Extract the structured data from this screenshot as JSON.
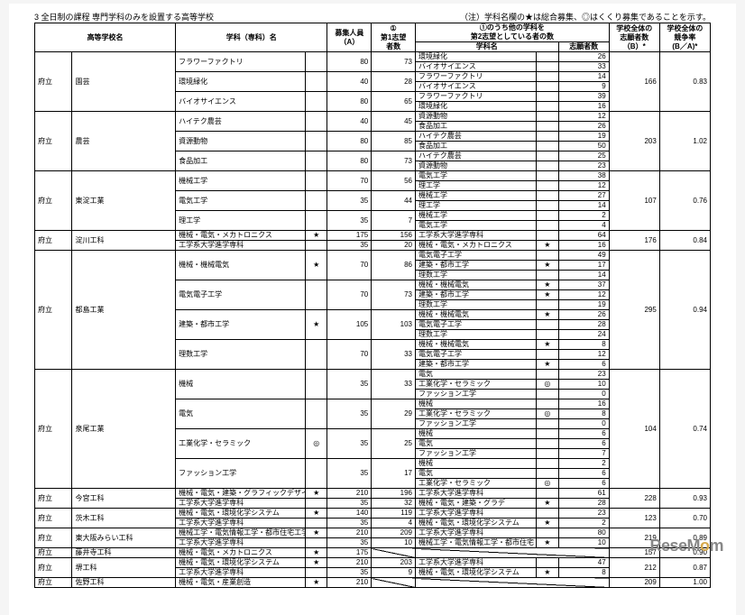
{
  "title_left": "3 全日制の課程 専門学科のみを設置する高等学校",
  "title_right": "（注）学科名欄の★は総合募集、◎はくくり募集であることを示す。",
  "head": {
    "school": "高等学校名",
    "dept": "学科（専科）名",
    "capacity": "募集人員\n（A）",
    "first": "①\n第1志望\n者数",
    "second_top": "①のうち他の学科を\n第2志望としている者の数",
    "second_dept": "学科名",
    "second_count": "志願者数",
    "total": "学校全体の\n志願者数\n（B）*",
    "ratio": "学校全体の\n競争率\n（B／A）*"
  },
  "groups": [
    {
      "prefix": "府立",
      "school": "園芸",
      "total": 166,
      "ratio": "0.83",
      "depts": [
        {
          "name": "フラワーファクトリ",
          "cap": 80,
          "first": 73,
          "sec": [
            [
              "環境緑化",
              26
            ],
            [
              "バイオサイエンス",
              33
            ]
          ]
        },
        {
          "name": "環境緑化",
          "cap": 40,
          "first": 28,
          "sec": [
            [
              "フラワーファクトリ",
              14
            ],
            [
              "バイオサイエンス",
              9
            ]
          ]
        },
        {
          "name": "バイオサイエンス",
          "cap": 80,
          "first": 65,
          "sec": [
            [
              "フラワーファクトリ",
              39
            ],
            [
              "環境緑化",
              16
            ]
          ]
        }
      ]
    },
    {
      "prefix": "府立",
      "school": "農芸",
      "total": 203,
      "ratio": "1.02",
      "depts": [
        {
          "name": "ハイテク農芸",
          "cap": 40,
          "first": 45,
          "sec": [
            [
              "資源動物",
              12
            ],
            [
              "食品加工",
              26
            ]
          ]
        },
        {
          "name": "資源動物",
          "cap": 80,
          "first": 85,
          "sec": [
            [
              "ハイテク農芸",
              19
            ],
            [
              "食品加工",
              50
            ]
          ]
        },
        {
          "name": "食品加工",
          "cap": 80,
          "first": 73,
          "sec": [
            [
              "ハイテク農芸",
              25
            ],
            [
              "資源動物",
              23
            ]
          ]
        }
      ]
    },
    {
      "prefix": "府立",
      "school": "東淀工業",
      "total": 107,
      "ratio": "0.76",
      "depts": [
        {
          "name": "機械工学",
          "cap": 70,
          "first": 56,
          "sec": [
            [
              "電気工学",
              38
            ],
            [
              "理工学",
              12
            ]
          ]
        },
        {
          "name": "電気工学",
          "cap": 35,
          "first": 44,
          "sec": [
            [
              "機械工学",
              27
            ],
            [
              "理工学",
              14
            ]
          ]
        },
        {
          "name": "理工学",
          "cap": 35,
          "first": 7,
          "sec": [
            [
              "機械工学",
              2
            ],
            [
              "電気工学",
              4
            ]
          ]
        }
      ]
    },
    {
      "prefix": "府立",
      "school": "淀川工科",
      "total": 176,
      "ratio": "0.84",
      "depts": [
        {
          "name": "機械・電気・メカトロニクス",
          "mark": "★",
          "cap": 175,
          "first": 156,
          "sec": [
            [
              "工学系大学進学専科",
              64
            ]
          ]
        },
        {
          "name": "工学系大学進学専科",
          "cap": 35,
          "first": 20,
          "sec": [
            [
              "機械・電気・メカトロニクス",
              "★",
              16
            ]
          ]
        }
      ]
    },
    {
      "prefix": "府立",
      "school": "都島工業",
      "total": 295,
      "ratio": "0.94",
      "depts": [
        {
          "name": "機械・機械電気",
          "mark": "★",
          "cap": 70,
          "first": 86,
          "sec": [
            [
              "電気電子工学",
              "",
              49
            ],
            [
              "建築・都市工学",
              "★",
              17
            ],
            [
              "理数工学",
              "",
              14
            ]
          ]
        },
        {
          "name": "電気電子工学",
          "cap": 70,
          "first": 73,
          "sec": [
            [
              "機械・機械電気",
              "★",
              37
            ],
            [
              "建築・都市工学",
              "★",
              12
            ],
            [
              "理数工学",
              "",
              19
            ]
          ]
        },
        {
          "name": "建築・都市工学",
          "mark": "★",
          "cap": 105,
          "first": 103,
          "sec": [
            [
              "機械・機械電気",
              "★",
              26
            ],
            [
              "電気電子工学",
              "",
              28
            ],
            [
              "理数工学",
              "",
              24
            ]
          ]
        },
        {
          "name": "理数工学",
          "cap": 70,
          "first": 33,
          "sec": [
            [
              "機械・機械電気",
              "★",
              8
            ],
            [
              "電気電子工学",
              "",
              12
            ],
            [
              "建築・都市工学",
              "★",
              6
            ]
          ]
        }
      ]
    },
    {
      "prefix": "府立",
      "school": "泉尾工業",
      "total": 104,
      "ratio": "0.74",
      "depts": [
        {
          "name": "機械",
          "cap": 35,
          "first": 33,
          "sec": [
            [
              "電気",
              "",
              23
            ],
            [
              "工業化学・セラミック",
              "◎",
              10
            ],
            [
              "ファッション工学",
              "",
              0
            ]
          ]
        },
        {
          "name": "電気",
          "cap": 35,
          "first": 29,
          "sec": [
            [
              "機械",
              "",
              16
            ],
            [
              "工業化学・セラミック",
              "◎",
              8
            ],
            [
              "ファッション工学",
              "",
              0
            ]
          ]
        },
        {
          "name": "工業化学・セラミック",
          "mark": "◎",
          "cap": 35,
          "first": 25,
          "sec": [
            [
              "機械",
              "",
              6
            ],
            [
              "電気",
              "",
              6
            ],
            [
              "ファッション工学",
              "",
              7
            ]
          ]
        },
        {
          "name": "ファッション工学",
          "cap": 35,
          "first": 17,
          "sec": [
            [
              "機械",
              "",
              2
            ],
            [
              "電気",
              "",
              6
            ],
            [
              "工業化学・セラミック",
              "◎",
              6
            ]
          ]
        }
      ]
    },
    {
      "prefix": "府立",
      "school": "今宮工科",
      "total": 228,
      "ratio": "0.93",
      "depts": [
        {
          "name": "機械・電気・建築・グラフィックデザイン",
          "mark": "★",
          "cap": 210,
          "first": 196,
          "sec": [
            [
              "工学系大学進学専科",
              61
            ]
          ]
        },
        {
          "name": "工学系大学進学専科",
          "cap": 35,
          "first": 32,
          "sec": [
            [
              "機械・電気・建築・グラデ",
              "★",
              28
            ]
          ]
        }
      ]
    },
    {
      "prefix": "府立",
      "school": "茨木工科",
      "total": 123,
      "ratio": "0.70",
      "depts": [
        {
          "name": "機械・電気・環境化学システム",
          "mark": "★",
          "cap": 140,
          "first": 119,
          "sec": [
            [
              "工学系大学進学専科",
              23
            ]
          ]
        },
        {
          "name": "工学系大学進学専科",
          "cap": 35,
          "first": 4,
          "sec": [
            [
              "機械・電気・環境化学システム",
              "★",
              2
            ]
          ]
        }
      ]
    },
    {
      "prefix": "府立",
      "school": "東大阪みらい工科",
      "total": 219,
      "ratio": "0.89",
      "depts": [
        {
          "name": "機械工学・電気情報工学・都市住宅工学・建築設備",
          "mark": "★",
          "cap": 210,
          "first": 209,
          "sec": [
            [
              "工学系大学進学専科",
              80
            ]
          ]
        },
        {
          "name": "工学系大学進学専科",
          "cap": 35,
          "first": 10,
          "sec": [
            [
              "機械工学・電気情報工学・都市住宅",
              "★",
              10
            ]
          ]
        }
      ]
    },
    {
      "prefix": "府立",
      "school": "藤井寺工科",
      "total": 157,
      "ratio": "0.90",
      "depts": [
        {
          "name": "機械・電気・メカトロニクス",
          "mark": "★",
          "cap": 175,
          "first": "",
          "slash": true,
          "sec": []
        }
      ]
    },
    {
      "prefix": "府立",
      "school": "堺工科",
      "total": 212,
      "ratio": "0.87",
      "depts": [
        {
          "name": "機械・電気・環境化学システム",
          "mark": "★",
          "cap": 210,
          "first": 203,
          "sec": [
            [
              "工学系大学進学専科",
              47
            ]
          ]
        },
        {
          "name": "工学系大学進学専科",
          "cap": 35,
          "first": 9,
          "sec": [
            [
              "機械・電気・環境化学システム",
              "★",
              8
            ]
          ]
        }
      ]
    },
    {
      "prefix": "府立",
      "school": "佐野工科",
      "total": 209,
      "ratio": "1.00",
      "depts": [
        {
          "name": "機械・電気・産業創造",
          "mark": "★",
          "cap": 210,
          "first": "",
          "slash": true,
          "sec": []
        }
      ]
    }
  ],
  "watermark": {
    "part1": "ReseM",
    "part2": "o",
    "part3": "m"
  }
}
